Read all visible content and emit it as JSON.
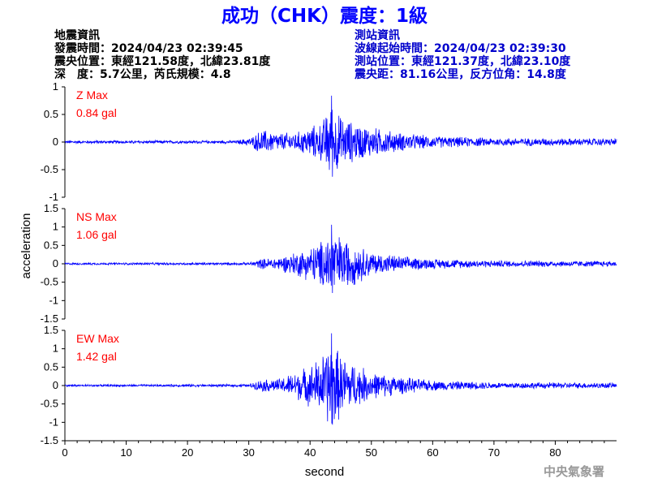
{
  "title": "成功（CHK）震度：1級",
  "quake_info": {
    "heading": "地震資訊",
    "time": "發震時間：2024/04/23 02:39:45",
    "epicenter": "震央位置：東經121.58度，北緯23.81度",
    "depth_magnitude": "深　度：5.7公里，芮氏規模：4.8"
  },
  "station_info": {
    "heading": "測站資訊",
    "wave_start": "波線起始時間：2024/04/23 02:39:30",
    "location": "測站位置：東經121.37度，北緯23.10度",
    "distance": "震央距：81.16公里，反方位角：14.8度"
  },
  "credit": "中央氣象署",
  "colors": {
    "trace": "#0000ff",
    "max_label": "#ff0000",
    "title": "#0000ff"
  },
  "chart_data": {
    "type": "line",
    "xlabel": "second",
    "ylabel": "acceleration",
    "xlim": [
      0,
      90
    ],
    "x_ticks": [
      0,
      10,
      20,
      30,
      40,
      50,
      60,
      70,
      80
    ],
    "panels": [
      {
        "name": "Z",
        "max_title": "Z Max",
        "max_value": "0.84 gal",
        "ylim": [
          -1,
          1
        ],
        "y_ticks": [
          1,
          0.5,
          0,
          -0.5,
          -1
        ],
        "y_tick_labels": [
          "1",
          "0.5",
          "0",
          "-0.5",
          "-1"
        ],
        "envelope": [
          [
            0,
            0.03
          ],
          [
            28,
            0.03
          ],
          [
            30.5,
            0.1
          ],
          [
            32,
            0.25
          ],
          [
            35,
            0.18
          ],
          [
            38,
            0.2
          ],
          [
            40,
            0.3
          ],
          [
            42,
            0.4
          ],
          [
            43.5,
            0.84
          ],
          [
            45,
            0.5
          ],
          [
            47,
            0.4
          ],
          [
            50,
            0.3
          ],
          [
            55,
            0.18
          ],
          [
            60,
            0.12
          ],
          [
            70,
            0.08
          ],
          [
            90,
            0.07
          ]
        ]
      },
      {
        "name": "NS",
        "max_title": "NS Max",
        "max_value": "1.06 gal",
        "ylim": [
          -1.5,
          1.5
        ],
        "y_ticks": [
          1.5,
          1,
          0.5,
          0,
          -0.5,
          -1,
          -1.5
        ],
        "y_tick_labels": [
          "1.5",
          "1",
          "0.5",
          "0",
          "-0.5",
          "-1",
          "-1.5"
        ],
        "envelope": [
          [
            0,
            0.03
          ],
          [
            30,
            0.04
          ],
          [
            32,
            0.15
          ],
          [
            35,
            0.2
          ],
          [
            40,
            0.5
          ],
          [
            42,
            0.7
          ],
          [
            43.5,
            1.06
          ],
          [
            45,
            0.8
          ],
          [
            47,
            0.65
          ],
          [
            50,
            0.35
          ],
          [
            55,
            0.22
          ],
          [
            60,
            0.15
          ],
          [
            70,
            0.1
          ],
          [
            90,
            0.08
          ]
        ]
      },
      {
        "name": "EW",
        "max_title": "EW Max",
        "max_value": "1.42 gal",
        "ylim": [
          -1.5,
          1.5
        ],
        "y_ticks": [
          1.5,
          1,
          0.5,
          0,
          -0.5,
          -1,
          -1.5
        ],
        "y_tick_labels": [
          "1.5",
          "1",
          "0.5",
          "0",
          "-0.5",
          "-1",
          "-1.5"
        ],
        "envelope": [
          [
            0,
            0.03
          ],
          [
            30,
            0.04
          ],
          [
            32,
            0.18
          ],
          [
            35,
            0.2
          ],
          [
            40,
            0.6
          ],
          [
            42,
            0.9
          ],
          [
            43.5,
            1.42
          ],
          [
            45,
            0.9
          ],
          [
            47,
            0.7
          ],
          [
            50,
            0.4
          ],
          [
            55,
            0.25
          ],
          [
            60,
            0.15
          ],
          [
            70,
            0.1
          ],
          [
            90,
            0.08
          ]
        ]
      }
    ]
  }
}
